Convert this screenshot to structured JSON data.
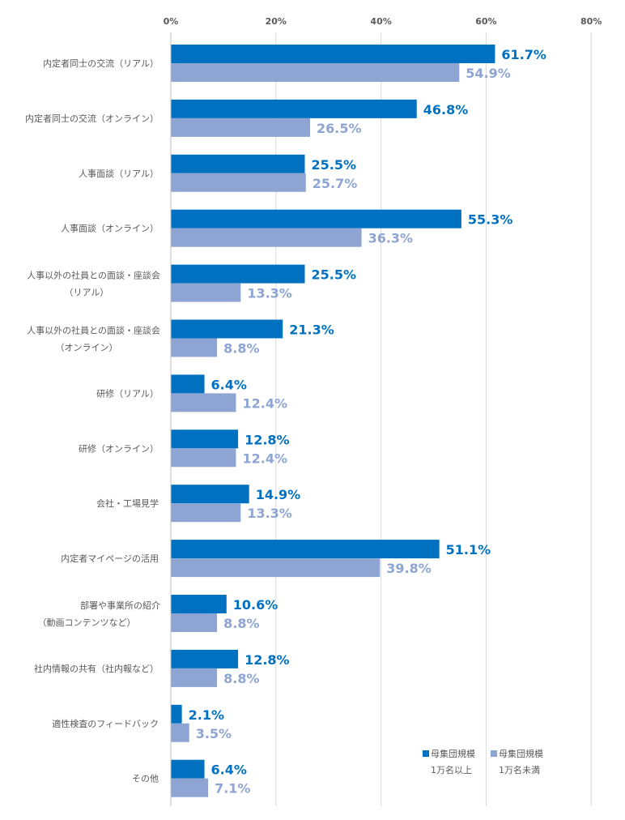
{
  "chart_data": {
    "type": "bar",
    "orientation": "horizontal",
    "xlim": [
      0,
      80
    ],
    "x_ticks": [
      "0%",
      "20%",
      "40%",
      "60%",
      "80%"
    ],
    "grid": true,
    "legend_position": "bottom-right",
    "categories": [
      [
        "内定者同士の交流（リアル）"
      ],
      [
        "内定者同士の交流（オンライン）"
      ],
      [
        "人事面談（リアル）"
      ],
      [
        "人事面談（オンライン）"
      ],
      [
        "人事以外の社員との面談・座談会",
        "（リアル）"
      ],
      [
        "人事以外の社員との面談・座談会",
        "（オンライン）"
      ],
      [
        "研修（リアル）"
      ],
      [
        "研修（オンライン）"
      ],
      [
        "会社・工場見学"
      ],
      [
        "内定者マイページの活用"
      ],
      [
        "部署や事業所の紹介",
        "（動画コンテンツなど）"
      ],
      [
        "社内情報の共有（社内報など）"
      ],
      [
        "適性検査のフィードバック"
      ],
      [
        "その他"
      ]
    ],
    "series": [
      {
        "name": [
          "母集団規模",
          "1万名以上"
        ],
        "color": "#0070c0",
        "values": [
          61.7,
          46.8,
          25.5,
          55.3,
          25.5,
          21.3,
          6.4,
          12.8,
          14.9,
          51.1,
          10.6,
          12.8,
          2.1,
          6.4
        ]
      },
      {
        "name": [
          "母集団規模",
          "1万名未満"
        ],
        "color": "#8ea5d3",
        "values": [
          54.9,
          26.5,
          25.7,
          36.3,
          13.3,
          8.8,
          12.4,
          12.4,
          13.3,
          39.8,
          8.8,
          8.8,
          3.5,
          7.1
        ]
      }
    ]
  }
}
